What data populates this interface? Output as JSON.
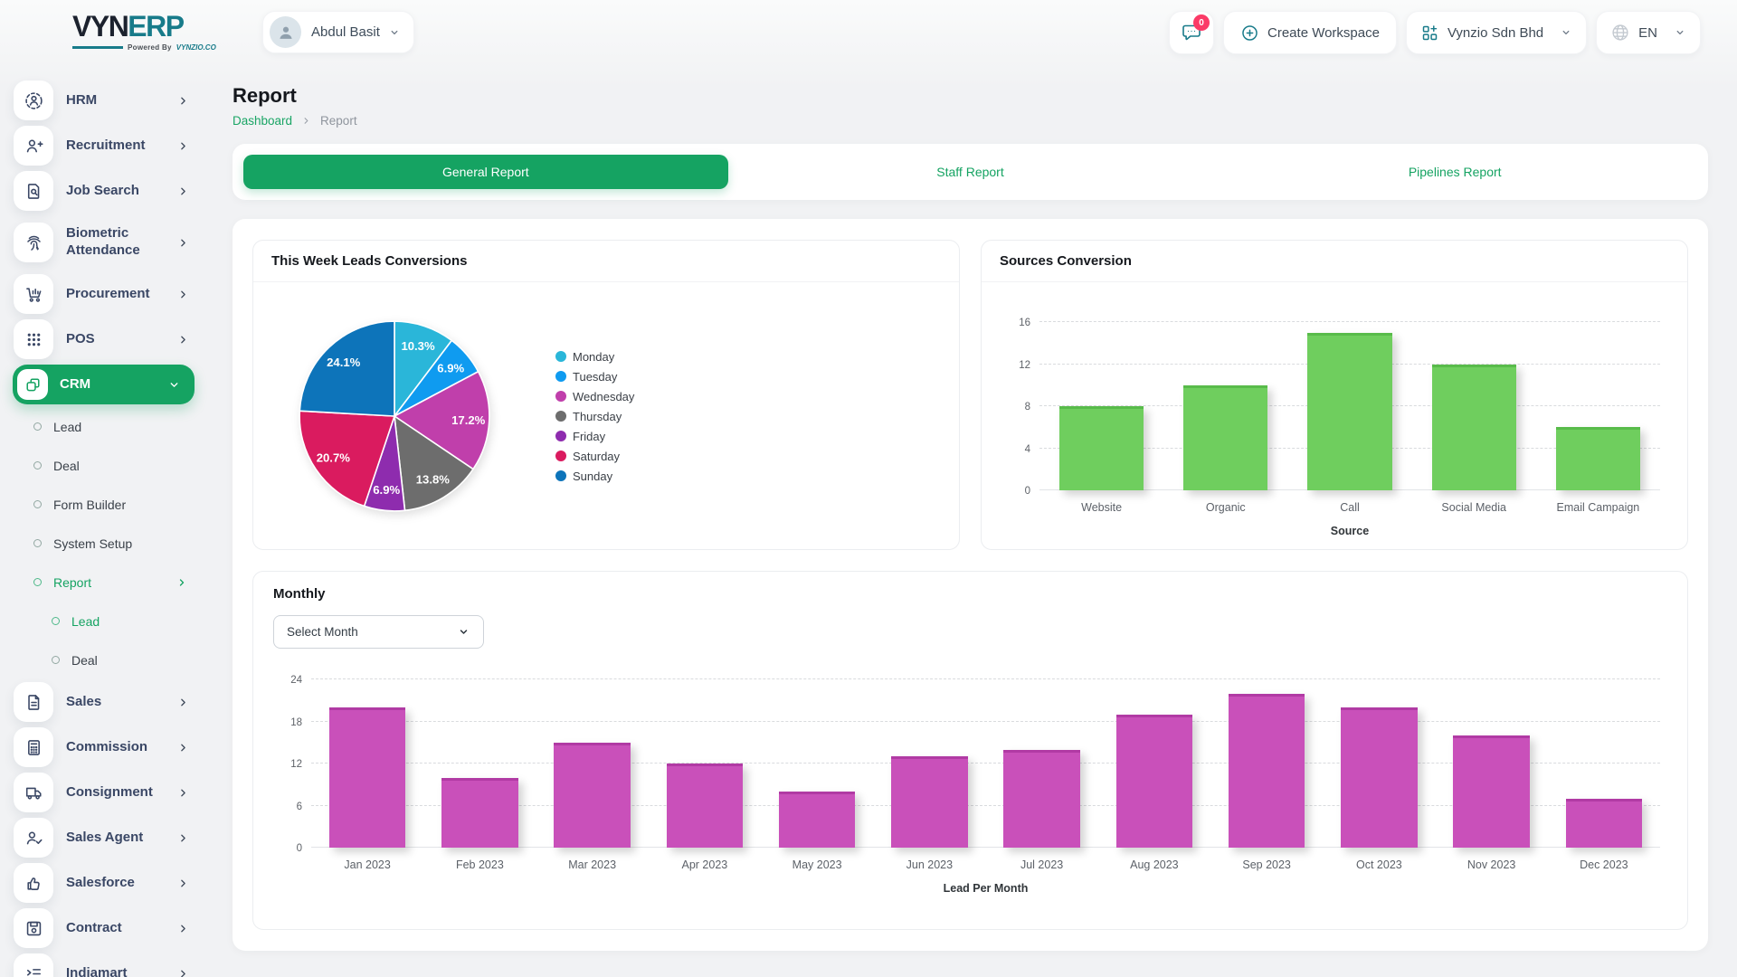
{
  "colors": {
    "accent_green": "#15a362",
    "brand_teal": "#187b8a",
    "badge_pink": "#fb3a67",
    "sidebar_text": "#3a4765"
  },
  "brand": {
    "logo_primary": "VYN",
    "logo_secondary": "ERP",
    "powered_by": "Powered By",
    "powered_brand": "VYNZIO.CO"
  },
  "header": {
    "user_name": "Abdul Basit",
    "chat_badge_count": "0",
    "create_workspace": "Create Workspace",
    "company_name": "Vynzio Sdn Bhd",
    "language": "EN"
  },
  "page": {
    "title": "Report",
    "breadcrumb_home": "Dashboard",
    "breadcrumb_current": "Report"
  },
  "tabs": {
    "general": "General Report",
    "staff": "Staff Report",
    "pipelines": "Pipelines Report"
  },
  "sidebar": {
    "items": [
      {
        "label": "HRM",
        "icon": "hrm-icon"
      },
      {
        "label": "Recruitment",
        "icon": "person-plus-icon"
      },
      {
        "label": "Job Search",
        "icon": "document-search-icon"
      },
      {
        "label": "Biometric Attendance",
        "icon": "fingerprint-icon"
      },
      {
        "label": "Procurement",
        "icon": "cart-icon"
      },
      {
        "label": "POS",
        "icon": "grid-dots-icon"
      },
      {
        "label": "CRM",
        "icon": "crm-icon",
        "active": true
      },
      {
        "label": "Sales",
        "icon": "file-icon"
      },
      {
        "label": "Commission",
        "icon": "calculator-icon"
      },
      {
        "label": "Consignment",
        "icon": "truck-icon"
      },
      {
        "label": "Sales Agent",
        "icon": "person-check-icon"
      },
      {
        "label": "Salesforce",
        "icon": "thumbs-up-icon"
      },
      {
        "label": "Contract",
        "icon": "floppy-icon"
      },
      {
        "label": "Indiamart",
        "icon": "indent-list-icon"
      }
    ],
    "crm_submenu": [
      {
        "label": "Lead"
      },
      {
        "label": "Deal"
      },
      {
        "label": "Form Builder"
      },
      {
        "label": "System Setup"
      },
      {
        "label": "Report",
        "active": true
      }
    ],
    "report_submenu": [
      {
        "label": "Lead",
        "active": true
      },
      {
        "label": "Deal"
      }
    ]
  },
  "monthly": {
    "title": "Monthly",
    "select_label": "Select Month"
  },
  "chart_data": [
    {
      "type": "pie",
      "title": "This Week Leads Conversions",
      "labels": [
        "Monday",
        "Tuesday",
        "Wednesday",
        "Thursday",
        "Friday",
        "Saturday",
        "Sunday"
      ],
      "values": [
        10.3,
        6.9,
        17.2,
        13.8,
        6.9,
        20.7,
        24.1
      ],
      "unit": "%",
      "colors": [
        "#2ab6d9",
        "#0f9bf0",
        "#c03fab",
        "#6d6d6d",
        "#8e2cae",
        "#da1b5f",
        "#0d74ba"
      ],
      "legend_position": "right",
      "start_angle": "top-clockwise"
    },
    {
      "type": "bar",
      "title": "Sources Conversion",
      "categories": [
        "Website",
        "Organic",
        "Call",
        "Social Media",
        "Email Campaign"
      ],
      "values": [
        8,
        10,
        15,
        12,
        6
      ],
      "xlabel": "Source",
      "ylim": [
        0,
        16
      ],
      "yticks": [
        0,
        4,
        8,
        12,
        16
      ],
      "bar_color": "#6fce5e",
      "bar_top": "#58bb4a",
      "grid": "dashed"
    },
    {
      "type": "bar",
      "title": "Monthly",
      "categories": [
        "Jan 2023",
        "Feb 2023",
        "Mar 2023",
        "Apr 2023",
        "May 2023",
        "Jun 2023",
        "Jul 2023",
        "Aug 2023",
        "Sep 2023",
        "Oct 2023",
        "Nov 2023",
        "Dec 2023"
      ],
      "values": [
        20,
        10,
        15,
        12,
        8,
        13,
        14,
        19,
        22,
        20,
        16,
        7
      ],
      "xlabel": "Lead Per Month",
      "ylim": [
        0,
        24
      ],
      "yticks": [
        0,
        6,
        12,
        18,
        24
      ],
      "bar_color": "#c950ba",
      "bar_top": "#b13aa4",
      "grid": "dashed"
    }
  ]
}
